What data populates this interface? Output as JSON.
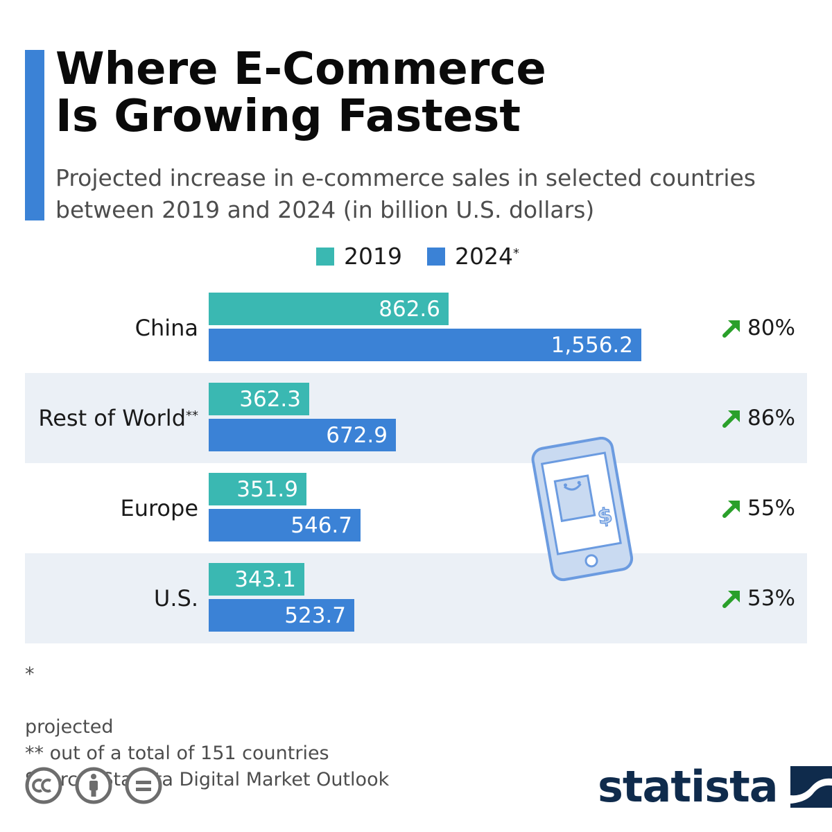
{
  "header": {
    "title_lines": [
      "Where E-Commerce",
      "Is Growing Fastest"
    ],
    "subtitle_lines": [
      "Projected increase in e-commerce sales in selected countries",
      "between 2019 and 2024 (in billion U.S. dollars)"
    ]
  },
  "chart_data": {
    "type": "bar",
    "orientation": "horizontal",
    "title": "Where E-Commerce Is Growing Fastest",
    "subtitle": "Projected increase in e-commerce sales in selected countries between 2019 and 2024 (in billion U.S. dollars)",
    "categories": [
      "China",
      "Rest of World",
      "Europe",
      "U.S."
    ],
    "category_marks": [
      "",
      "**",
      "",
      ""
    ],
    "series": [
      {
        "name": "2019",
        "mark": "",
        "color": "#3ab8b2",
        "values": [
          862.6,
          362.3,
          351.9,
          343.1
        ],
        "labels": [
          "862.6",
          "362.3",
          "351.9",
          "343.1"
        ]
      },
      {
        "name": "2024",
        "mark": "*",
        "color": "#3b82d6",
        "values": [
          1556.2,
          672.9,
          546.7,
          523.7
        ],
        "labels": [
          "1,556.2",
          "672.9",
          "546.7",
          "523.7"
        ]
      }
    ],
    "growth_labels": [
      "80%",
      "86%",
      "55%",
      "53%"
    ],
    "growth_icon": "arrow-up-right-icon",
    "growth_color": "#2aa02a",
    "legend_position": "top",
    "grid": false
  },
  "footnotes": {
    "projected_mark": "*",
    "projected": "projected",
    "countries": "** out of a total of 151 countries",
    "source": "Source: Statista Digital Market Outlook"
  },
  "license_icons": [
    "cc-icon",
    "attribution-icon",
    "no-derivatives-icon"
  ],
  "brand": {
    "name": "statista",
    "logo_icon": "statista-logo-icon"
  },
  "illustration_icon": "smartphone-shopping-bag-icon"
}
